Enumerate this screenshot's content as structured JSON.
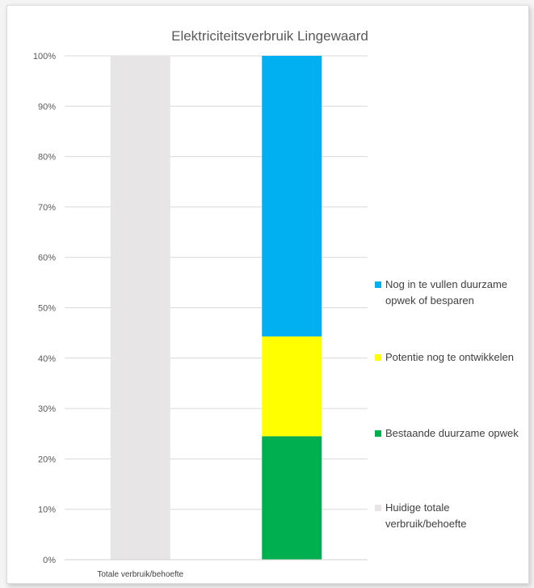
{
  "chart_data": {
    "type": "bar",
    "stacked": true,
    "title": "Elektriciteitsverbruik Lingewaard",
    "categories": [
      "Totale verbruik/behoefte",
      ""
    ],
    "ylim": [
      0,
      100
    ],
    "yticks": [
      "0%",
      "10%",
      "20%",
      "30%",
      "40%",
      "50%",
      "60%",
      "70%",
      "80%",
      "90%",
      "100%"
    ],
    "grid": true,
    "legend_position": "right",
    "series": [
      {
        "name": "Huidige totale verbruik/behoefte",
        "color": "#e7e5e6",
        "values": [
          100,
          0
        ]
      },
      {
        "name": "Bestaande duurzame opwek",
        "color": "#00b050",
        "values": [
          0,
          24.5
        ]
      },
      {
        "name": "Potentie nog te ontwikkelen",
        "color": "#ffff00",
        "values": [
          0,
          19.8
        ]
      },
      {
        "name": "Nog in te vullen duurzame opwek of besparen",
        "color": "#00b0f0",
        "values": [
          0,
          55.7
        ]
      }
    ],
    "legend": [
      {
        "lines": [
          "Nog in te vullen duurzame",
          "opwek of besparen"
        ],
        "color": "#00b0f0"
      },
      {
        "lines": [
          "Potentie nog te ontwikkelen"
        ],
        "color": "#ffff00"
      },
      {
        "lines": [
          "Bestaande duurzame opwek"
        ],
        "color": "#00b050"
      },
      {
        "lines": [
          "Huidige totale",
          "verbruik/behoefte"
        ],
        "color": "#e7e5e6"
      }
    ]
  }
}
